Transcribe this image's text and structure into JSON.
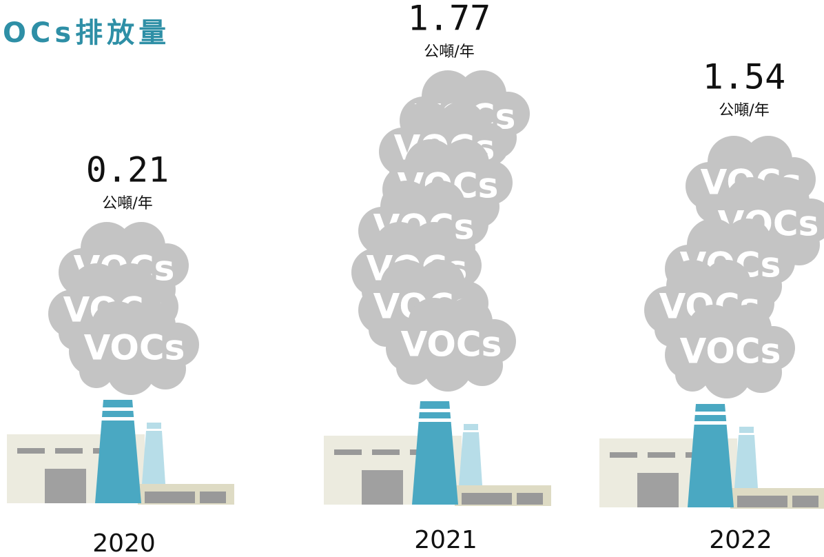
{
  "chart_data": {
    "type": "pictograph",
    "title": "OCs排放量",
    "categories": [
      "2020",
      "2021",
      "2022"
    ],
    "values": [
      0.21,
      1.77,
      1.54
    ],
    "unit": "公噸/年",
    "cloud_label": "VOCs",
    "color": "#c4c4c4"
  }
}
